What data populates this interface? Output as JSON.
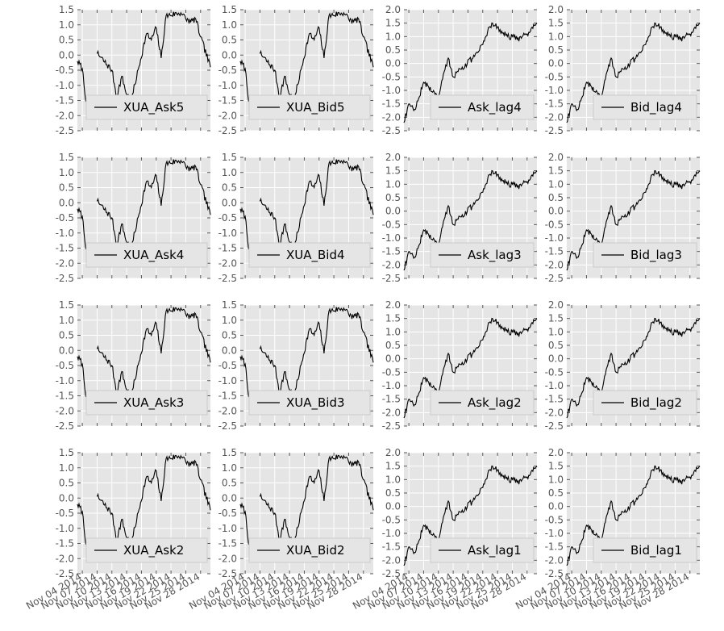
{
  "chart_data": {
    "type": "line",
    "grid": true,
    "background": "#e5e5e5",
    "line_color": "#000000",
    "legend_position": "lower right",
    "shared_x_tick_labels": [
      "Nov 04 2014",
      "Nov 07 2014",
      "Nov 10 2014",
      "Nov 13 2014",
      "Nov 16 2014",
      "Nov 19 2014",
      "Nov 22 2014",
      "Nov 25 2014",
      "Nov 28 2014"
    ],
    "y_ticks_a": [
      "1.5",
      "1.0",
      "0.5",
      "0.0",
      "-0.5",
      "-1.0",
      "-1.5",
      "-2.0",
      "-2.5"
    ],
    "y_ticks_b": [
      "2.0",
      "1.5",
      "1.0",
      "0.5",
      "0.0",
      "-0.5",
      "-1.0",
      "-1.5",
      "-2.0",
      "-2.5"
    ],
    "shapes": {
      "A": {
        "ylim": [
          -2.5,
          1.5
        ],
        "x": [
          "2014-11-03",
          "2014-11-04",
          "2014-11-05",
          "2014-11-06",
          "2014-11-07",
          "2014-11-10",
          "2014-11-11",
          "2014-11-12",
          "2014-11-13",
          "2014-11-14",
          "2014-11-17",
          "2014-11-18",
          "2014-11-19",
          "2014-11-20",
          "2014-11-21",
          "2014-11-24",
          "2014-11-25",
          "2014-11-26",
          "2014-11-27",
          "2014-11-28",
          "2014-11-30"
        ],
        "y": [
          -0.2,
          -0.45,
          -1.9,
          null,
          0.05,
          -0.5,
          -1.4,
          -0.7,
          -1.3,
          -1.45,
          0.7,
          0.5,
          0.9,
          -0.1,
          1.3,
          1.4,
          1.2,
          1.1,
          1.2,
          0.6,
          -0.4
        ]
      },
      "B": {
        "ylim": [
          -2.5,
          2.0
        ],
        "x": [
          "2014-11-03",
          "2014-11-04",
          "2014-11-05",
          "2014-11-06",
          "2014-11-07",
          "2014-11-10",
          "2014-11-11",
          "2014-11-12",
          "2014-11-13",
          "2014-11-14",
          "2014-11-17",
          "2014-11-18",
          "2014-11-19",
          "2014-11-20",
          "2014-11-21",
          "2014-11-24",
          "2014-11-25",
          "2014-11-26",
          "2014-11-27",
          "2014-11-28",
          "2014-11-30"
        ],
        "y": [
          -2.2,
          -1.5,
          -1.75,
          -1.3,
          -0.7,
          -1.2,
          -0.4,
          0.2,
          -0.5,
          -0.3,
          0.2,
          0.4,
          0.7,
          1.2,
          1.5,
          1.0,
          1.0,
          0.9,
          1.0,
          1.1,
          1.5
        ]
      }
    },
    "panels": [
      {
        "legend": "XUA_Ask5",
        "shape": "A",
        "ticks": "y_ticks_a"
      },
      {
        "legend": "XUA_Bid5",
        "shape": "A",
        "ticks": "y_ticks_a"
      },
      {
        "legend": "Ask_lag4",
        "shape": "B",
        "ticks": "y_ticks_b"
      },
      {
        "legend": "Bid_lag4",
        "shape": "B",
        "ticks": "y_ticks_b"
      },
      {
        "legend": "XUA_Ask4",
        "shape": "A",
        "ticks": "y_ticks_a"
      },
      {
        "legend": "XUA_Bid4",
        "shape": "A",
        "ticks": "y_ticks_a"
      },
      {
        "legend": "Ask_lag3",
        "shape": "B",
        "ticks": "y_ticks_b"
      },
      {
        "legend": "Bid_lag3",
        "shape": "B",
        "ticks": "y_ticks_b"
      },
      {
        "legend": "XUA_Ask3",
        "shape": "A",
        "ticks": "y_ticks_a"
      },
      {
        "legend": "XUA_Bid3",
        "shape": "A",
        "ticks": "y_ticks_a"
      },
      {
        "legend": "Ask_lag2",
        "shape": "B",
        "ticks": "y_ticks_b"
      },
      {
        "legend": "Bid_lag2",
        "shape": "B",
        "ticks": "y_ticks_b"
      },
      {
        "legend": "XUA_Ask2",
        "shape": "A",
        "ticks": "y_ticks_a"
      },
      {
        "legend": "XUA_Bid2",
        "shape": "A",
        "ticks": "y_ticks_a"
      },
      {
        "legend": "Ask_lag1",
        "shape": "B",
        "ticks": "y_ticks_b"
      },
      {
        "legend": "Bid_lag1",
        "shape": "B",
        "ticks": "y_ticks_b"
      }
    ]
  }
}
